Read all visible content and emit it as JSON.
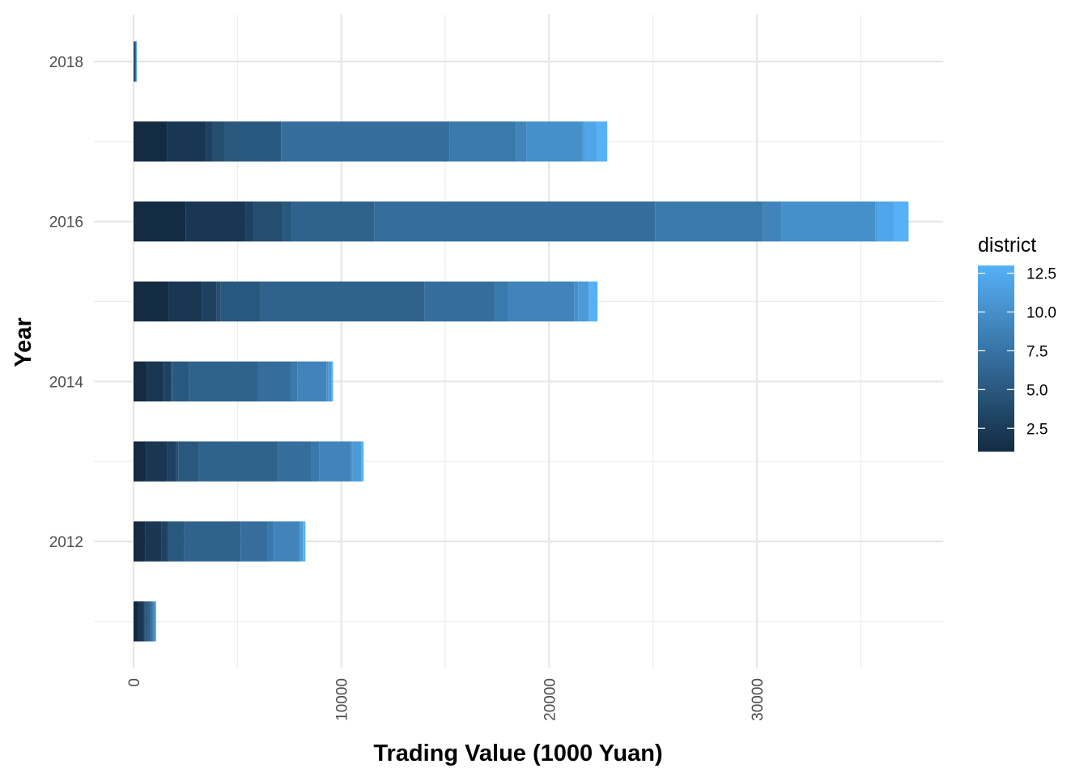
{
  "chart_data": {
    "type": "bar",
    "orientation": "horizontal",
    "stacked": true,
    "xlabel": "Trading Value (1000 Yuan)",
    "ylabel": "Year",
    "xlim": [
      0,
      39000
    ],
    "x_ticks": [
      0,
      10000,
      20000,
      30000
    ],
    "y_ticks": [
      2012,
      2014,
      2016,
      2018
    ],
    "ylim": [
      2010.25,
      2018.75
    ],
    "grid": true,
    "legend": {
      "title": "district",
      "placement": "right",
      "type": "continuous",
      "min": 1,
      "max": 13,
      "breaks": [
        2.5,
        5.0,
        7.5,
        10.0,
        12.5
      ],
      "break_labels": [
        "2.5",
        "5.0",
        "7.5",
        "10.0",
        "12.5"
      ],
      "color_low": "#132B43",
      "color_high": "#56B1F7"
    },
    "districts": [
      1,
      2,
      3,
      4,
      5,
      6,
      7,
      8,
      9,
      10,
      11,
      12,
      13
    ],
    "bars": [
      {
        "year": 2011,
        "segments": [
          250,
          200,
          80,
          50,
          100,
          150,
          100,
          30,
          50,
          20,
          20,
          10,
          10
        ]
      },
      {
        "year": 2012,
        "segments": [
          550,
          800,
          300,
          100,
          700,
          2700,
          1300,
          300,
          1200,
          100,
          100,
          20,
          100
        ]
      },
      {
        "year": 2013,
        "segments": [
          600,
          1000,
          450,
          100,
          1000,
          3800,
          1600,
          400,
          1500,
          100,
          400,
          20,
          100
        ]
      },
      {
        "year": 2014,
        "segments": [
          650,
          800,
          350,
          80,
          800,
          3300,
          1600,
          300,
          1400,
          100,
          150,
          20,
          50
        ]
      },
      {
        "year": 2015,
        "segments": [
          1700,
          1600,
          700,
          200,
          1900,
          7900,
          3400,
          600,
          3200,
          200,
          500,
          30,
          400
        ]
      },
      {
        "year": 2016,
        "segments": [
          2500,
          2900,
          400,
          1400,
          400,
          4000,
          13500,
          5200,
          900,
          4500,
          100,
          800,
          700
        ]
      },
      {
        "year": 2017,
        "segments": [
          1600,
          1900,
          300,
          600,
          2700,
          0,
          8100,
          3200,
          500,
          2700,
          100,
          600,
          500
        ]
      },
      {
        "year": 2018,
        "segments": [
          30,
          20,
          10,
          10,
          20,
          10,
          10,
          5,
          5,
          5,
          5,
          5,
          5
        ]
      }
    ]
  }
}
